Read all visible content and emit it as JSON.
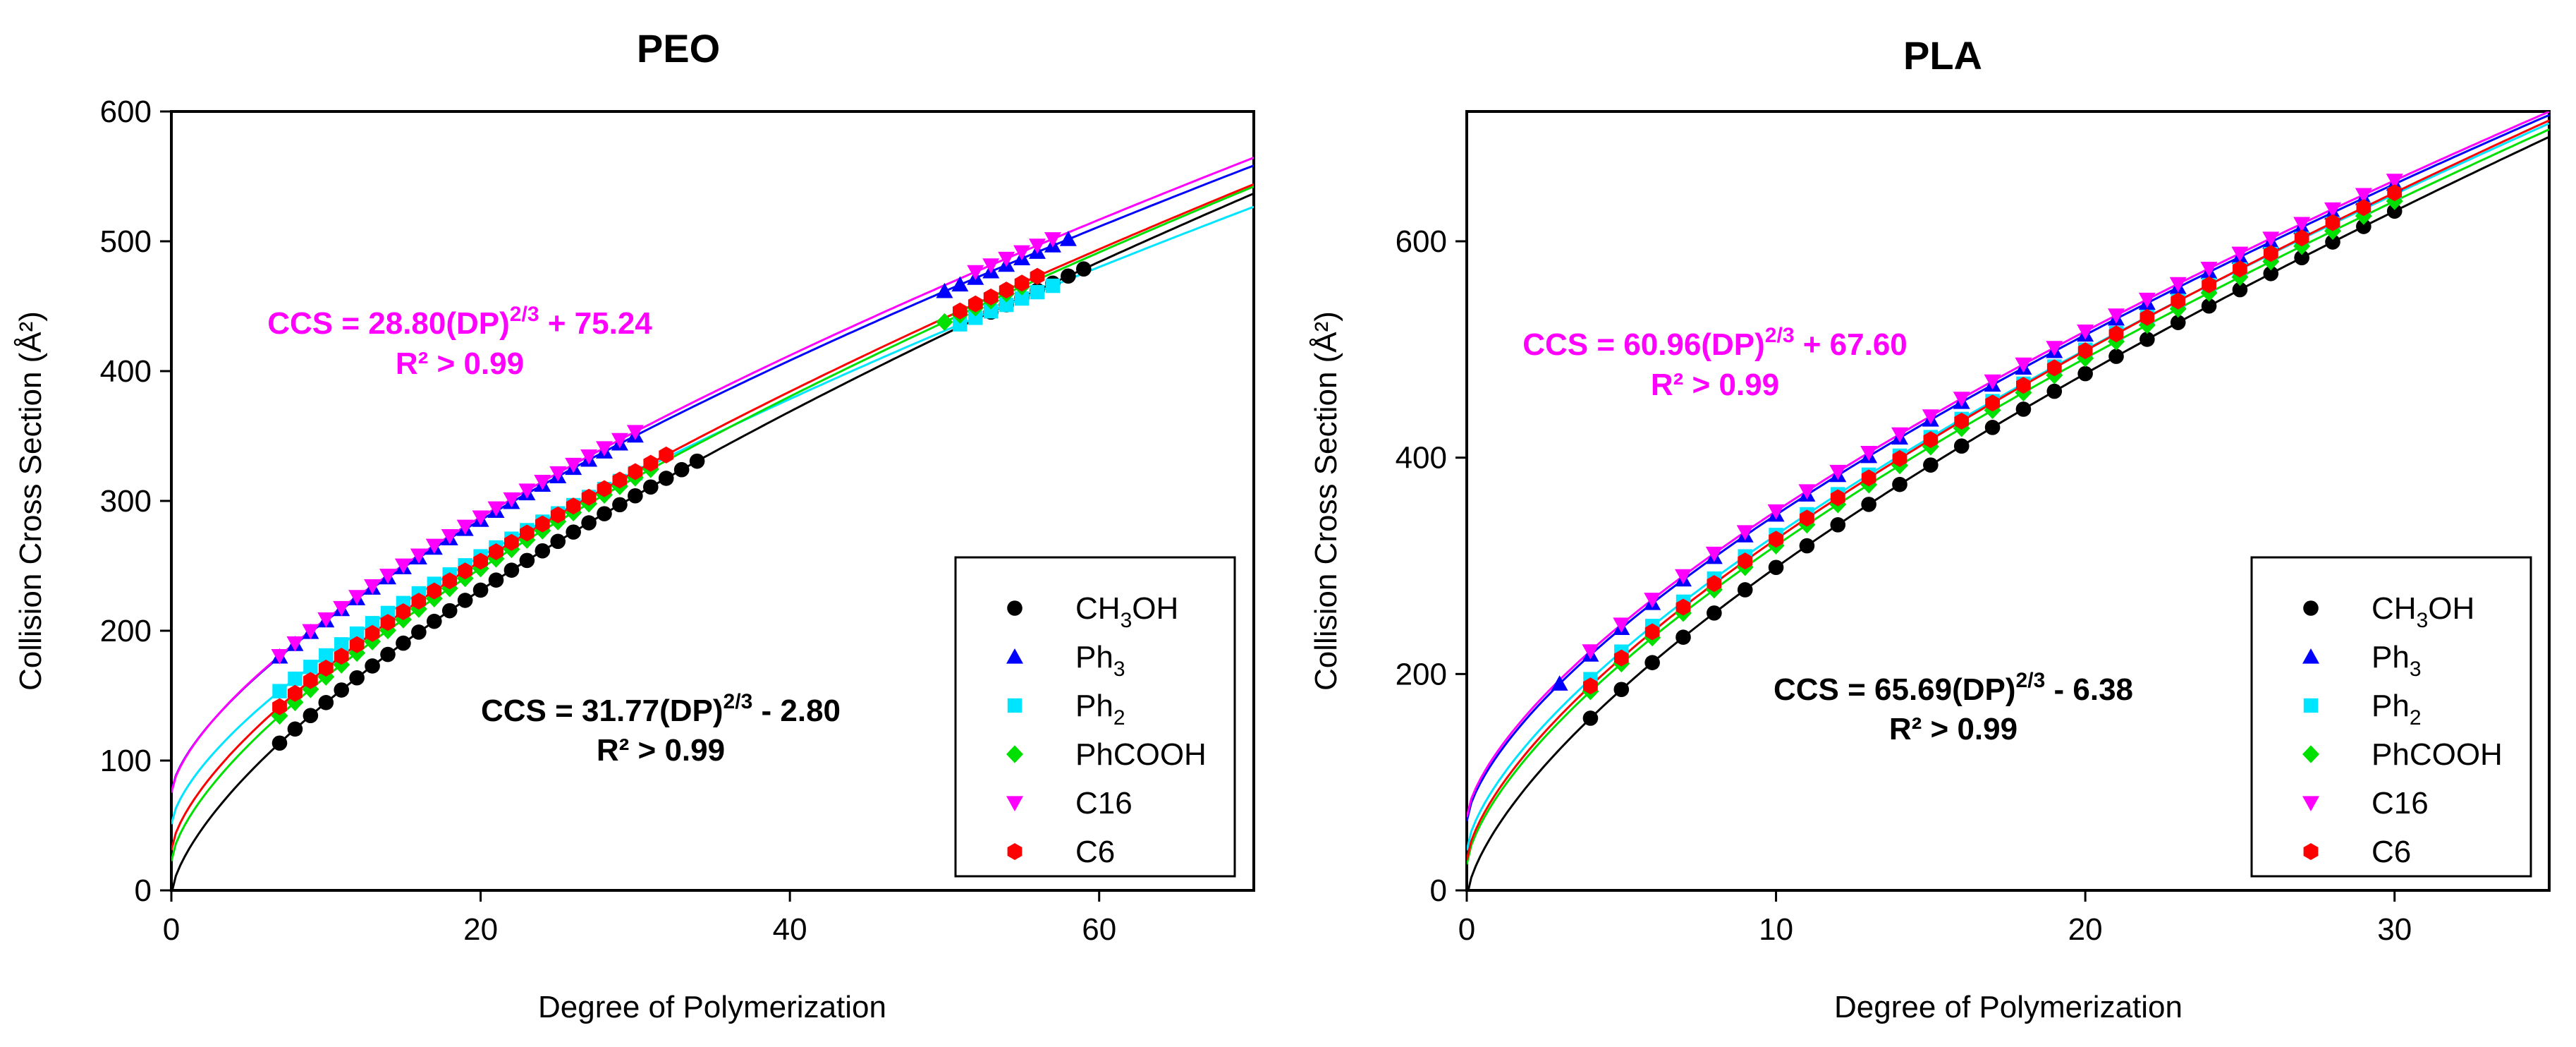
{
  "chart_data": [
    {
      "type": "scatter",
      "title": "PEO",
      "xlabel": "Degree of Polymerization",
      "ylabel": "Collision Cross Section (Å²)",
      "xlim": [
        0,
        70
      ],
      "ylim": [
        0,
        600
      ],
      "xticks": [
        "0",
        "20",
        "40",
        "60"
      ],
      "xtick_values": [
        0,
        20,
        40,
        60
      ],
      "yticks": [
        "0",
        "100",
        "200",
        "300",
        "400",
        "500",
        "600"
      ],
      "ytick_values": [
        0,
        100,
        200,
        300,
        400,
        500,
        600
      ],
      "legend_position": "bottom-right",
      "annotation_top": {
        "prefix": "CCS = 28.80(DP)",
        "exp": "2/3",
        "suffix": " + 75.24",
        "r2": "R² > 0.99",
        "color": "#ff00ff"
      },
      "annotation_bottom": {
        "prefix": "CCS = 31.77(DP)",
        "exp": "2/3",
        "suffix": " - 2.80",
        "r2": "R² > 0.99",
        "color": "#000000"
      },
      "series": [
        {
          "name": "CH3OH",
          "legend_main": "CH",
          "legend_sub": "3",
          "legend_tail": "OH",
          "marker": "circle",
          "color": "#000000",
          "fit": [
            31.77,
            -2.8
          ],
          "x_start": 7,
          "x_end": 34,
          "x_start2": 53,
          "x_end2": 59
        },
        {
          "name": "Ph3",
          "legend_main": "Ph",
          "legend_sub": "3",
          "legend_tail": "",
          "marker": "triangle-up",
          "color": "#0000ff",
          "fit": [
            28.4,
            76.0
          ],
          "x_start": 7,
          "x_end": 30,
          "x_start2": 50,
          "x_end2": 58
        },
        {
          "name": "Ph2",
          "legend_main": "Ph",
          "legend_sub": "2",
          "legend_tail": "",
          "marker": "square",
          "color": "#00e5ff",
          "fit": [
            28.0,
            51.0
          ],
          "x_start": 7,
          "x_end": 30,
          "x_start2": 51,
          "x_end2": 57
        },
        {
          "name": "PhCOOH",
          "legend_main": "PhCOOH",
          "legend_sub": "",
          "legend_tail": "",
          "marker": "diamond",
          "color": "#00e000",
          "fit": [
            30.6,
            22.5
          ],
          "x_start": 7,
          "x_end": 31,
          "x_start2": 50,
          "x_end2": 55
        },
        {
          "name": "C16",
          "legend_main": "C16",
          "legend_sub": "",
          "legend_tail": "",
          "marker": "triangle-down",
          "color": "#ff00ff",
          "fit": [
            28.8,
            75.24
          ],
          "x_start": 7,
          "x_end": 30,
          "x_start2": 52,
          "x_end2": 57
        },
        {
          "name": "C6",
          "legend_main": "C6",
          "legend_sub": "",
          "legend_tail": "",
          "marker": "hexagon",
          "color": "#ff0000",
          "fit": [
            30.2,
            31.0
          ],
          "x_start": 7,
          "x_end": 32,
          "x_start2": 51,
          "x_end2": 56
        }
      ]
    },
    {
      "type": "scatter",
      "title": "PLA",
      "xlabel": "Degree of Polymerization",
      "ylabel": "Collision Cross Section (Å²)",
      "xlim": [
        0,
        35
      ],
      "ylim": [
        0,
        720
      ],
      "xticks": [
        "0",
        "10",
        "20",
        "30"
      ],
      "xtick_values": [
        0,
        10,
        20,
        30
      ],
      "yticks": [
        "0",
        "200",
        "400",
        "600"
      ],
      "ytick_values": [
        0,
        200,
        400,
        600
      ],
      "legend_position": "bottom-right",
      "annotation_top": {
        "prefix": "CCS = 60.96(DP)",
        "exp": "2/3",
        "suffix": " + 67.60",
        "r2": "R² > 0.99",
        "color": "#ff00ff"
      },
      "annotation_bottom": {
        "prefix": "CCS = 65.69(DP)",
        "exp": "2/3",
        "suffix": " - 6.38",
        "r2": "R² > 0.99",
        "color": "#000000"
      },
      "series": [
        {
          "name": "CH3OH",
          "legend_main": "CH",
          "legend_sub": "3",
          "legend_tail": "OH",
          "marker": "circle",
          "color": "#000000",
          "fit": [
            65.69,
            -6.38
          ],
          "x_start": 4,
          "x_end": 30
        },
        {
          "name": "Ph3",
          "legend_main": "Ph",
          "legend_sub": "3",
          "legend_tail": "",
          "marker": "triangle-up",
          "color": "#0000ff",
          "fit": [
            61.0,
            64.0
          ],
          "x_start": 3,
          "x_end": 30
        },
        {
          "name": "Ph2",
          "legend_main": "Ph",
          "legend_sub": "2",
          "legend_tail": "",
          "marker": "square",
          "color": "#00e5ff",
          "fit": [
            62.8,
            37.0
          ],
          "x_start": 4,
          "x_end": 30
        },
        {
          "name": "PhCOOH",
          "legend_main": "PhCOOH",
          "legend_sub": "",
          "legend_tail": "",
          "marker": "diamond",
          "color": "#00e000",
          "fit": [
            63.5,
            24.0
          ],
          "x_start": 4,
          "x_end": 30
        },
        {
          "name": "C16",
          "legend_main": "C16",
          "legend_sub": "",
          "legend_tail": "",
          "marker": "triangle-down",
          "color": "#ff00ff",
          "fit": [
            60.96,
            67.6
          ],
          "x_start": 4,
          "x_end": 30
        },
        {
          "name": "C6",
          "legend_main": "C6",
          "legend_sub": "",
          "legend_tail": "",
          "marker": "hexagon",
          "color": "#ff0000",
          "fit": [
            63.9,
            28.0
          ],
          "x_start": 4,
          "x_end": 30
        }
      ]
    }
  ]
}
